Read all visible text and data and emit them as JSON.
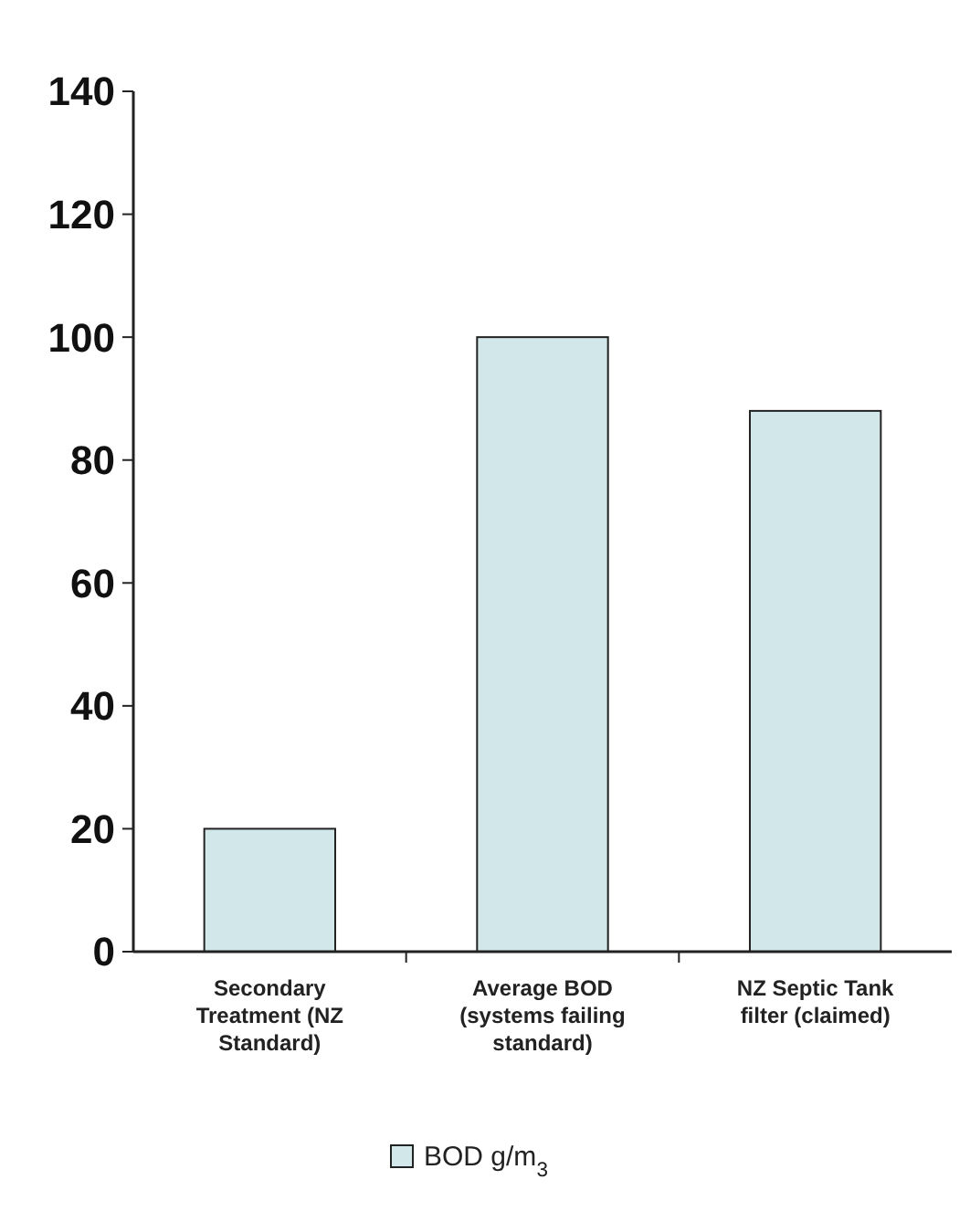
{
  "chart_data": {
    "type": "bar",
    "categories": [
      "Secondary Treatment (NZ Standard)",
      "Average BOD (systems failing standard)",
      "NZ Septic Tank filter (claimed)"
    ],
    "series": [
      {
        "name": "BOD g/m$_{3}$",
        "color": "#d2e7ea",
        "values": [
          20,
          100,
          88
        ]
      }
    ],
    "ylim": [
      0,
      140
    ],
    "yticks": [
      0,
      20,
      40,
      60,
      80,
      100,
      120,
      140
    ],
    "grid": false,
    "legend": "bottom"
  }
}
